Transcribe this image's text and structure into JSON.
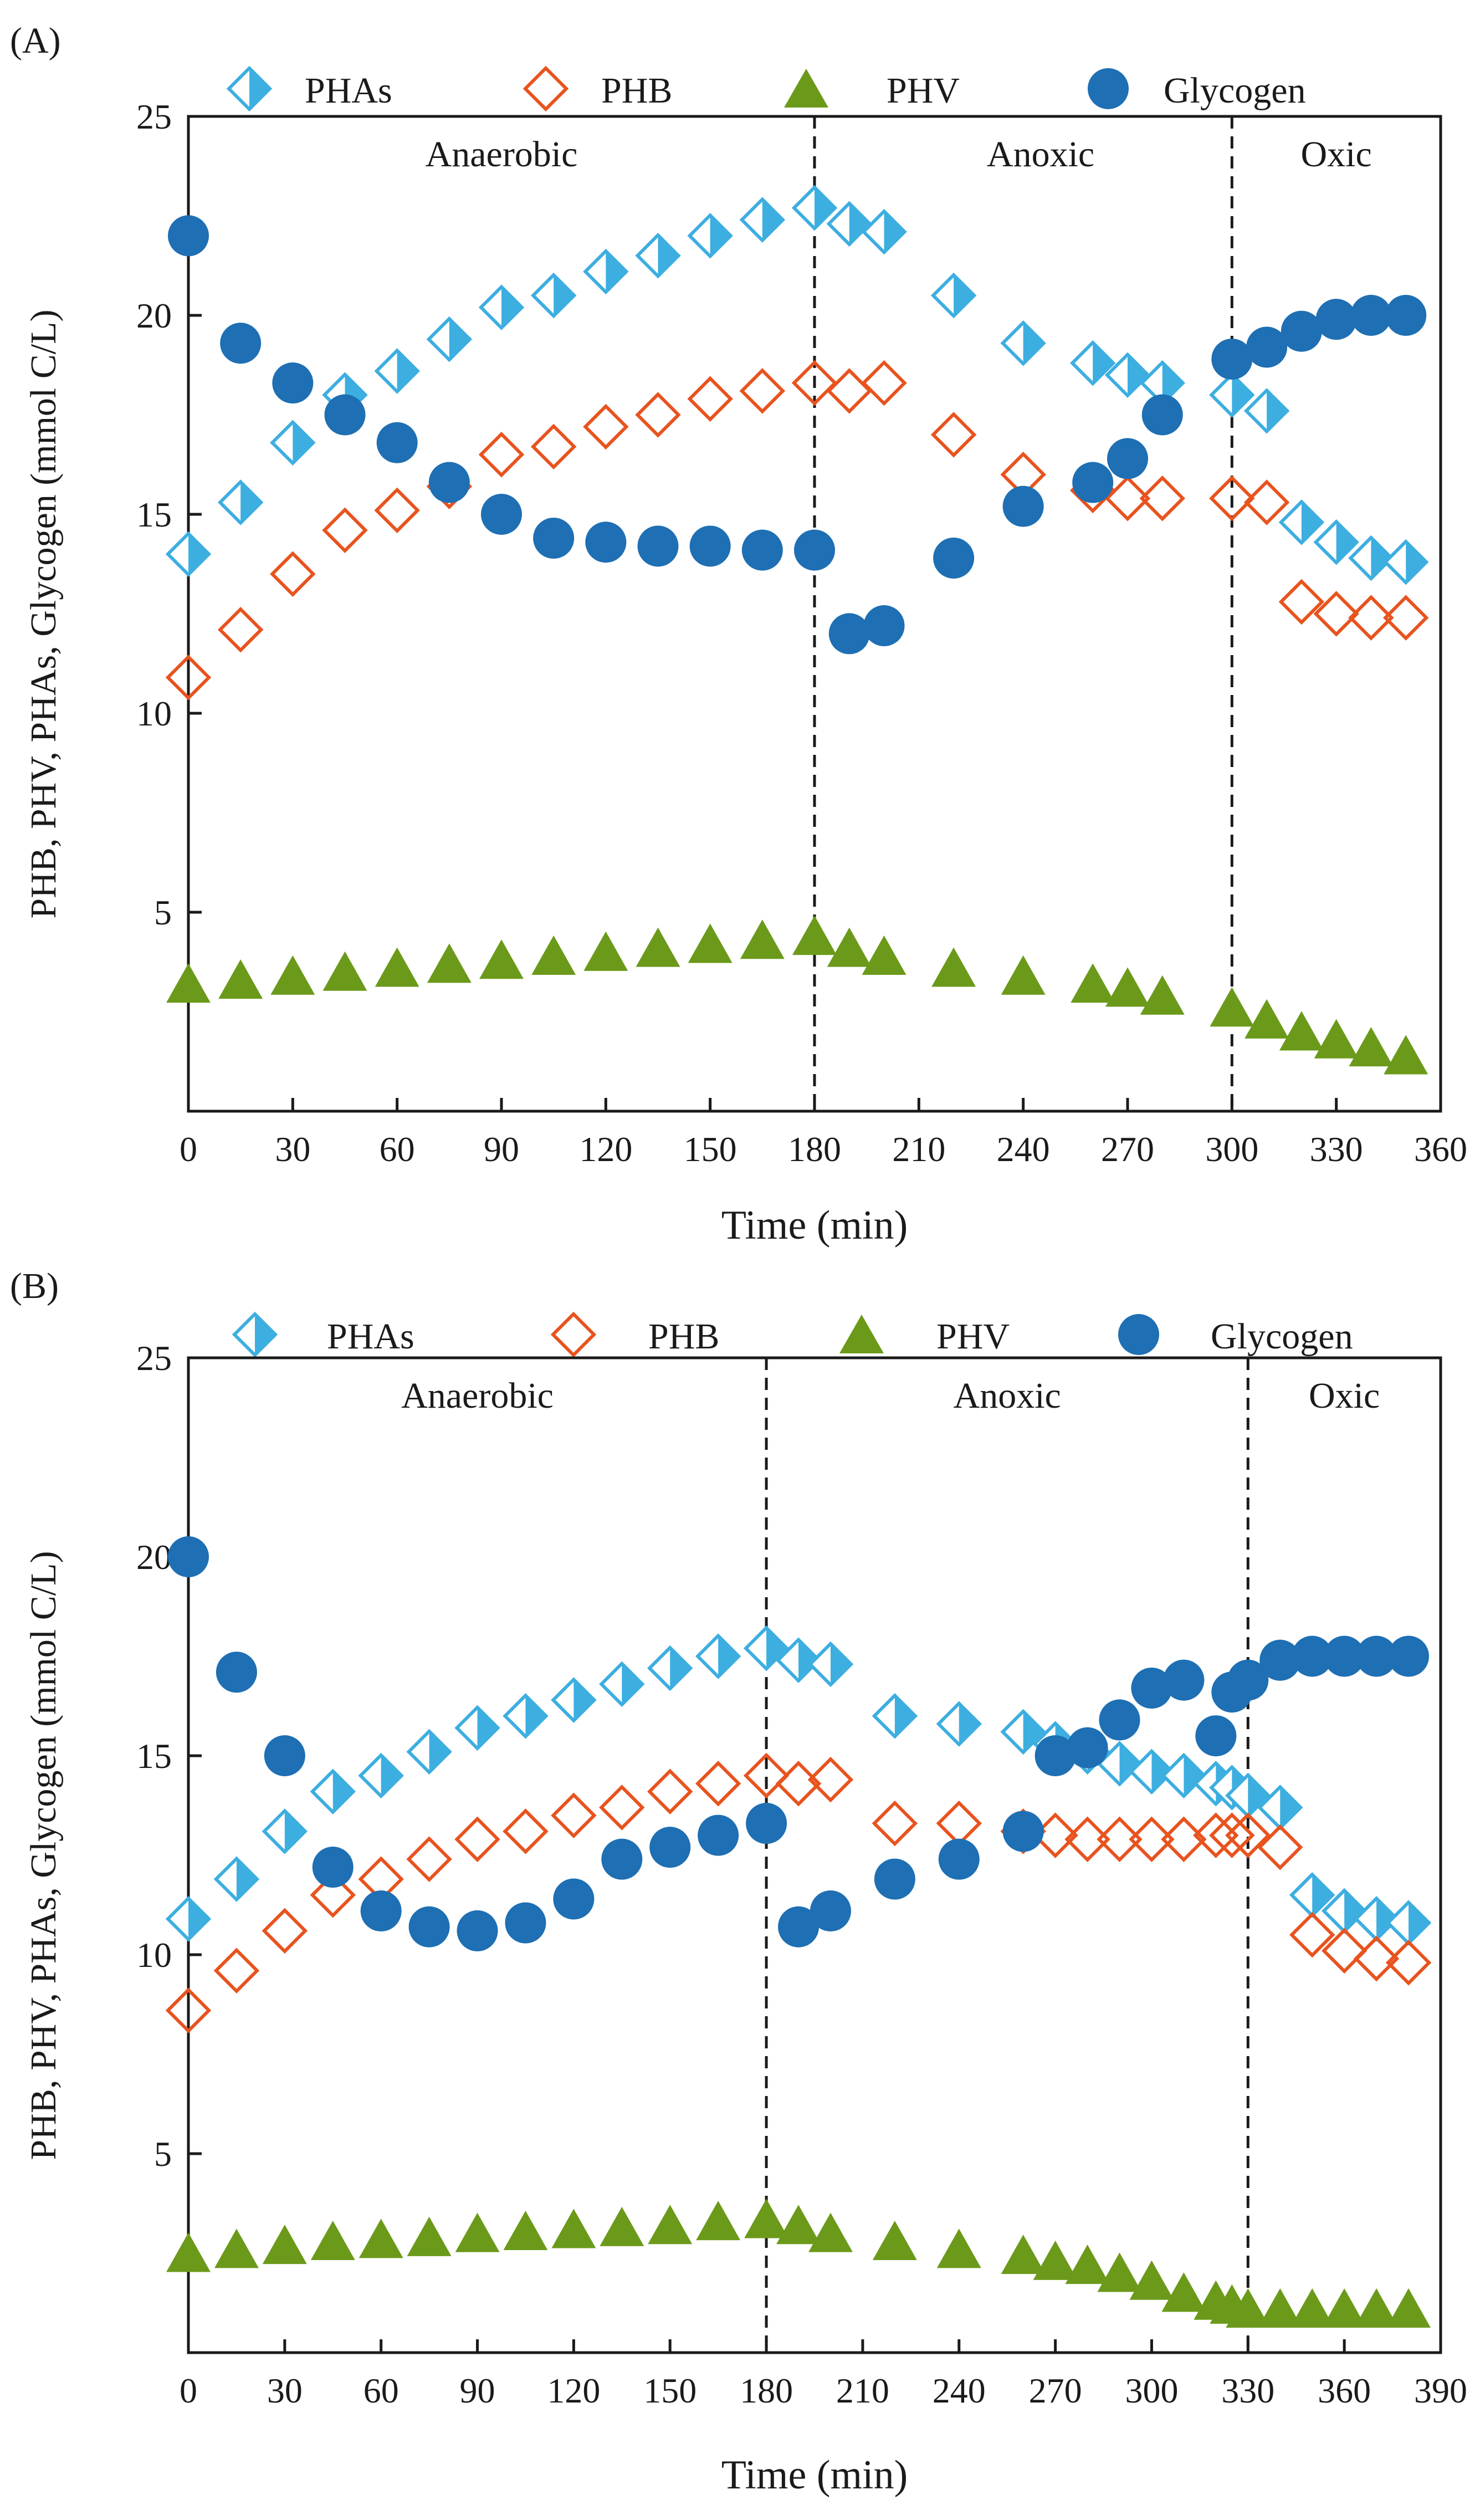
{
  "chart_data": [
    {
      "panel_label": "(A)",
      "type": "scatter",
      "xlabel": "Time (min)",
      "ylabel": "PHB, PHV, PHAs, Glycogen (mmol C/L)",
      "xlim": [
        0,
        360
      ],
      "ylim": [
        0,
        25
      ],
      "xticks": [
        0,
        30,
        60,
        90,
        120,
        150,
        180,
        210,
        240,
        270,
        300,
        330,
        360
      ],
      "yticks": [
        5,
        10,
        15,
        20,
        25
      ],
      "phase_dividers": [
        180,
        300
      ],
      "phases": [
        {
          "label": "Anaerobic",
          "x": 90
        },
        {
          "label": "Anoxic",
          "x": 245
        },
        {
          "label": "Oxic",
          "x": 330
        }
      ],
      "series": [
        {
          "name": "PHAs",
          "marker": "half-diamond",
          "color": "#3DAEE0",
          "x": [
            0,
            15,
            30,
            45,
            60,
            75,
            90,
            105,
            120,
            135,
            150,
            165,
            180,
            190,
            200,
            220,
            240,
            260,
            270,
            280,
            300,
            310,
            320,
            330,
            340,
            350
          ],
          "y": [
            14.0,
            15.3,
            16.8,
            18.0,
            18.6,
            19.4,
            20.2,
            20.5,
            21.1,
            21.5,
            22.0,
            22.4,
            22.7,
            22.3,
            22.1,
            20.5,
            19.3,
            18.8,
            18.5,
            18.3,
            18.0,
            17.6,
            14.8,
            14.3,
            13.9,
            13.8
          ]
        },
        {
          "name": "PHB",
          "marker": "open-diamond",
          "color": "#E8531E",
          "x": [
            0,
            15,
            30,
            45,
            60,
            75,
            90,
            105,
            120,
            135,
            150,
            165,
            180,
            190,
            200,
            220,
            240,
            260,
            270,
            280,
            300,
            310,
            320,
            330,
            340,
            350
          ],
          "y": [
            10.9,
            12.1,
            13.5,
            14.6,
            15.1,
            15.7,
            16.5,
            16.7,
            17.2,
            17.5,
            17.9,
            18.1,
            18.3,
            18.1,
            18.3,
            17.0,
            16.0,
            15.6,
            15.4,
            15.4,
            15.4,
            15.3,
            12.8,
            12.5,
            12.4,
            12.4
          ]
        },
        {
          "name": "PHV",
          "marker": "triangle",
          "color": "#6B9A1A",
          "x": [
            0,
            15,
            30,
            45,
            60,
            75,
            90,
            105,
            120,
            135,
            150,
            165,
            180,
            190,
            200,
            220,
            240,
            260,
            270,
            280,
            300,
            310,
            320,
            330,
            340,
            350
          ],
          "y": [
            3.2,
            3.3,
            3.4,
            3.5,
            3.6,
            3.7,
            3.8,
            3.9,
            4.0,
            4.1,
            4.2,
            4.3,
            4.4,
            4.1,
            3.9,
            3.6,
            3.4,
            3.2,
            3.1,
            2.9,
            2.6,
            2.3,
            2.0,
            1.8,
            1.6,
            1.4
          ]
        },
        {
          "name": "Glycogen",
          "marker": "circle",
          "color": "#1E6FB3",
          "x": [
            0,
            15,
            30,
            45,
            60,
            75,
            90,
            105,
            120,
            135,
            150,
            165,
            180,
            190,
            200,
            220,
            240,
            260,
            270,
            280,
            300,
            310,
            320,
            330,
            340,
            350
          ],
          "y": [
            22.0,
            19.3,
            18.3,
            17.5,
            16.8,
            15.8,
            15.0,
            14.4,
            14.3,
            14.2,
            14.2,
            14.1,
            14.1,
            12.0,
            12.2,
            13.9,
            15.2,
            15.8,
            16.4,
            17.5,
            18.9,
            19.2,
            19.6,
            19.9,
            20.0,
            20.0
          ]
        }
      ]
    },
    {
      "panel_label": "(B)",
      "type": "scatter",
      "xlabel": "Time (min)",
      "ylabel": "PHB, PHV, PHAs, Glycogen (mmol C/L)",
      "xlim": [
        0,
        390
      ],
      "ylim": [
        0,
        25
      ],
      "xticks": [
        0,
        30,
        60,
        90,
        120,
        150,
        180,
        210,
        240,
        270,
        300,
        330,
        360,
        390
      ],
      "yticks": [
        5,
        10,
        15,
        20,
        25
      ],
      "phase_dividers": [
        180,
        330
      ],
      "phases": [
        {
          "label": "Anaerobic",
          "x": 90
        },
        {
          "label": "Anoxic",
          "x": 255
        },
        {
          "label": "Oxic",
          "x": 360
        }
      ],
      "series": [
        {
          "name": "PHAs",
          "marker": "half-diamond",
          "color": "#3DAEE0",
          "x": [
            0,
            15,
            30,
            45,
            60,
            75,
            90,
            105,
            120,
            135,
            150,
            165,
            180,
            190,
            200,
            220,
            240,
            260,
            270,
            280,
            290,
            300,
            310,
            320,
            325,
            330,
            340,
            350,
            360,
            370,
            380
          ],
          "y": [
            10.9,
            11.9,
            13.1,
            14.1,
            14.5,
            15.1,
            15.7,
            16.0,
            16.4,
            16.8,
            17.2,
            17.5,
            17.7,
            17.4,
            17.3,
            16.0,
            15.8,
            15.6,
            15.3,
            15.1,
            14.8,
            14.6,
            14.5,
            14.3,
            14.2,
            14.0,
            13.7,
            11.5,
            11.1,
            10.9,
            10.8
          ]
        },
        {
          "name": "PHB",
          "marker": "open-diamond",
          "color": "#E8531E",
          "x": [
            0,
            15,
            30,
            45,
            60,
            75,
            90,
            105,
            120,
            135,
            150,
            165,
            180,
            190,
            200,
            220,
            240,
            260,
            270,
            280,
            290,
            300,
            310,
            320,
            325,
            330,
            340,
            350,
            360,
            370,
            380
          ],
          "y": [
            8.6,
            9.6,
            10.6,
            11.5,
            11.9,
            12.4,
            12.9,
            13.1,
            13.5,
            13.7,
            14.1,
            14.3,
            14.5,
            14.3,
            14.4,
            13.3,
            13.3,
            13.1,
            13.0,
            12.9,
            12.9,
            12.9,
            12.9,
            13.0,
            13.0,
            13.0,
            12.7,
            10.5,
            10.1,
            9.9,
            9.8
          ]
        },
        {
          "name": "PHV",
          "marker": "triangle",
          "color": "#6B9A1A",
          "x": [
            0,
            15,
            30,
            45,
            60,
            75,
            90,
            105,
            120,
            135,
            150,
            165,
            180,
            190,
            200,
            220,
            240,
            260,
            270,
            280,
            290,
            300,
            310,
            320,
            325,
            330,
            340,
            350,
            360,
            370,
            380
          ],
          "y": [
            2.5,
            2.6,
            2.7,
            2.8,
            2.85,
            2.9,
            3.0,
            3.05,
            3.1,
            3.15,
            3.2,
            3.3,
            3.35,
            3.2,
            3.0,
            2.8,
            2.6,
            2.45,
            2.3,
            2.2,
            2.0,
            1.8,
            1.5,
            1.3,
            1.2,
            1.1,
            1.1,
            1.1,
            1.1,
            1.1,
            1.1
          ]
        },
        {
          "name": "Glycogen",
          "marker": "circle",
          "color": "#1E6FB3",
          "x": [
            0,
            15,
            30,
            45,
            60,
            75,
            90,
            105,
            120,
            135,
            150,
            165,
            180,
            190,
            200,
            220,
            240,
            260,
            270,
            280,
            290,
            300,
            310,
            320,
            325,
            330,
            340,
            350,
            360,
            370,
            380
          ],
          "y": [
            20.0,
            17.1,
            15.0,
            12.2,
            11.1,
            10.7,
            10.6,
            10.8,
            11.4,
            12.4,
            12.7,
            13.0,
            13.3,
            10.7,
            11.1,
            11.9,
            12.4,
            13.1,
            15.0,
            15.2,
            15.9,
            16.7,
            16.9,
            15.5,
            16.6,
            16.9,
            17.4,
            17.5,
            17.5,
            17.5,
            17.5
          ]
        }
      ]
    }
  ]
}
